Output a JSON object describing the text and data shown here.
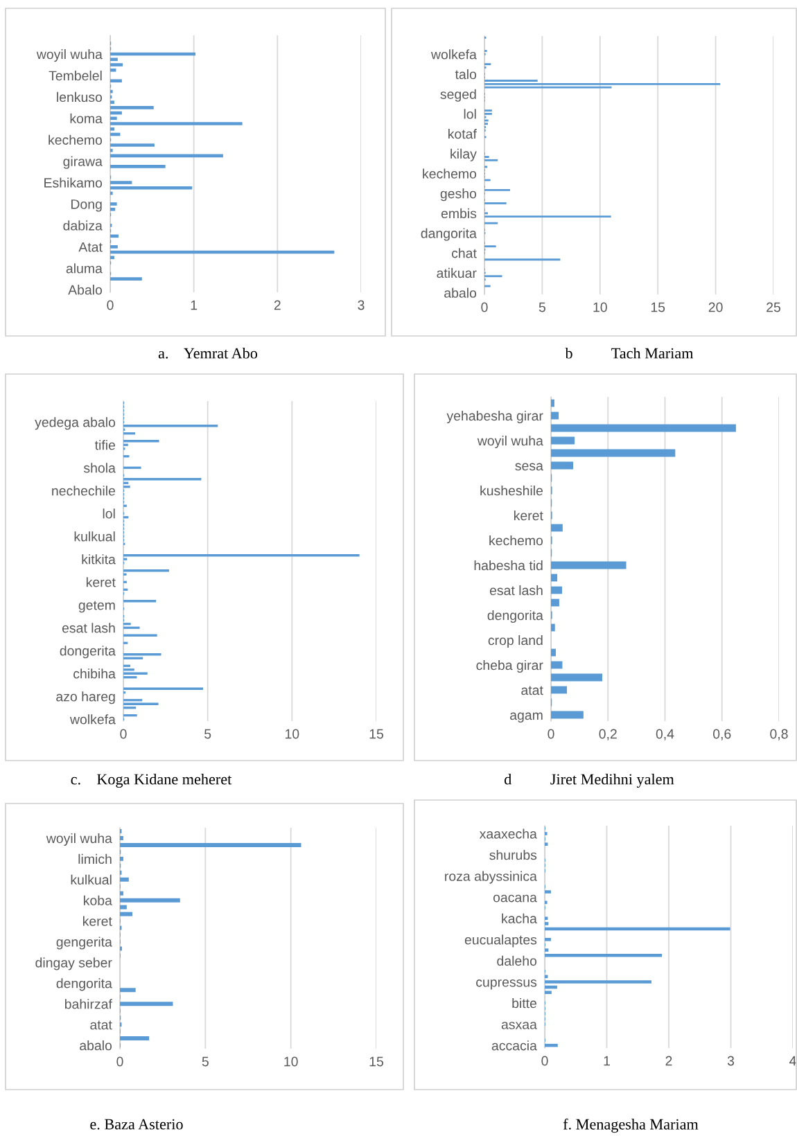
{
  "chart_data": [
    {
      "type": "bar",
      "orientation": "horizontal",
      "title": "a.    Yemrat Abo",
      "color": "#5b9bd5",
      "grid": "x",
      "xlim": [
        0,
        3
      ],
      "xticks": [
        0,
        1,
        2,
        3
      ],
      "categories": [
        null,
        null,
        null,
        "woyil wuha",
        null,
        null,
        null,
        "Tembelel",
        null,
        null,
        null,
        "lenkuso",
        null,
        null,
        null,
        "koma",
        null,
        null,
        null,
        "kechemo",
        null,
        null,
        null,
        "girawa",
        null,
        null,
        null,
        "Eshikamo",
        null,
        null,
        null,
        "Dong",
        null,
        null,
        null,
        "dabiza",
        null,
        null,
        null,
        "Atat",
        null,
        null,
        null,
        "aluma",
        null,
        null,
        null,
        "Abalo"
      ],
      "values": [
        0,
        0.01,
        0.01,
        1.02,
        0.09,
        0.15,
        0.07,
        0,
        0.14,
        0.01,
        0.03,
        0.02,
        0.05,
        0.52,
        0.14,
        0.08,
        1.58,
        0.05,
        0.12,
        0.01,
        0.53,
        0.03,
        1.35,
        0,
        0.66,
        0,
        0.01,
        0.26,
        0.98,
        0.03,
        0,
        0.08,
        0.06,
        0.01,
        0,
        0.02,
        0.01,
        0.1,
        0.01,
        0.09,
        2.68,
        0.05,
        0.01,
        0,
        0.01,
        0.38,
        0,
        0
      ]
    },
    {
      "type": "bar",
      "orientation": "horizontal",
      "title": "b          Tach Mariam",
      "color": "#5b9bd5",
      "grid": "x",
      "xlim": [
        0,
        25
      ],
      "xticks": [
        0,
        5,
        10,
        15,
        20,
        25
      ],
      "categories": [
        null,
        null,
        null,
        null,
        null,
        "wolkefa",
        null,
        null,
        null,
        null,
        null,
        "talo",
        null,
        null,
        null,
        null,
        null,
        "seged",
        null,
        null,
        null,
        null,
        null,
        "lol",
        null,
        null,
        null,
        null,
        null,
        "kotaf",
        null,
        null,
        null,
        null,
        null,
        "kilay",
        null,
        null,
        null,
        null,
        null,
        "kechemo",
        null,
        null,
        null,
        null,
        null,
        "gesho",
        null,
        null,
        null,
        null,
        null,
        "embis",
        null,
        null,
        null,
        null,
        null,
        "dangorita",
        null,
        null,
        null,
        null,
        null,
        "chat",
        null,
        null,
        null,
        null,
        null,
        "atikuar",
        null,
        null,
        null,
        null,
        null,
        "abalo"
      ],
      "values": [
        0.15,
        0,
        0,
        0,
        0.22,
        0.1,
        0,
        0,
        0.56,
        0.15,
        0,
        0.05,
        0.05,
        4.6,
        20.4,
        11,
        0,
        0.05,
        0.05,
        0.05,
        0,
        0,
        0.65,
        0.65,
        0.15,
        0.34,
        0.3,
        0.12,
        0.1,
        0,
        0.15,
        0,
        0,
        0,
        0,
        0.05,
        0.4,
        1.15,
        0,
        0.25,
        0.05,
        0.05,
        0.05,
        0.52,
        0,
        0.05,
        2.22,
        0.05,
        0,
        0.05,
        1.9,
        0,
        0.05,
        0.3,
        10.95,
        0,
        1.15,
        0,
        0.05,
        0.08,
        0,
        0,
        0.05,
        1,
        0.08,
        0.05,
        0,
        6.56,
        0,
        0,
        0.05,
        0.1,
        1.53,
        0.1,
        0,
        0.52,
        0,
        0
      ]
    },
    {
      "type": "bar",
      "orientation": "horizontal",
      "title": "c.    Koga Kidane meheret",
      "color": "#5b9bd5",
      "grid": "x",
      "xlim": [
        0,
        15
      ],
      "xticks": [
        0,
        5,
        10,
        15
      ],
      "categories": [
        null,
        null,
        null,
        null,
        null,
        "yedega abalo",
        null,
        null,
        null,
        null,
        null,
        "tifie",
        null,
        null,
        null,
        null,
        null,
        "shola",
        null,
        null,
        null,
        null,
        null,
        "nechechile",
        null,
        null,
        null,
        null,
        null,
        "lol",
        null,
        null,
        null,
        null,
        null,
        "kulkual",
        null,
        null,
        null,
        null,
        null,
        "kitkita",
        null,
        null,
        null,
        null,
        null,
        "keret",
        null,
        null,
        null,
        null,
        null,
        "getem",
        null,
        null,
        null,
        null,
        null,
        "esat lash",
        null,
        null,
        null,
        null,
        null,
        "dongerita",
        null,
        null,
        null,
        null,
        null,
        "chibiha",
        null,
        null,
        null,
        null,
        null,
        "azo hareg",
        null,
        null,
        null,
        null,
        null,
        "wolkefa"
      ],
      "values": [
        0.05,
        0.05,
        0.05,
        0.05,
        0.05,
        0.05,
        5.6,
        0.1,
        0.7,
        0,
        2.12,
        0.28,
        0.1,
        0,
        0.35,
        0,
        0,
        1.05,
        0,
        0.05,
        4.62,
        0.3,
        0.4,
        0.05,
        0.05,
        0.05,
        0.05,
        0.2,
        0,
        0.05,
        0.3,
        0.05,
        0.05,
        0.05,
        0.05,
        0.05,
        0.05,
        0.1,
        0,
        0,
        14,
        0.22,
        0.05,
        0,
        2.71,
        0.19,
        0,
        0.2,
        0,
        0.26,
        0.05,
        0,
        1.94,
        0,
        0.05,
        0,
        0.05,
        0.05,
        0.44,
        0.97,
        0,
        2,
        0,
        0.26,
        0,
        0,
        2.24,
        1.16,
        0,
        0.41,
        0.65,
        1.43,
        0.8,
        0,
        0,
        4.73,
        0.13,
        0,
        1.12,
        2.08,
        0.75,
        0,
        0.81,
        0.05
      ]
    },
    {
      "type": "bar",
      "orientation": "horizontal",
      "title": "d          Jiret Medihni yalem",
      "color": "#5b9bd5",
      "grid": "x",
      "xlim": [
        0,
        0.8
      ],
      "xticks": [
        {
          "value": 0,
          "label": "0"
        },
        {
          "value": 0.2,
          "label": "0,2"
        },
        {
          "value": 0.4,
          "label": "0,4"
        },
        {
          "value": 0.6,
          "label": "0,6"
        },
        {
          "value": 0.8,
          "label": "0,8"
        }
      ],
      "categories": [
        null,
        "yehabesha girar",
        null,
        "woyil wuha",
        null,
        "sesa",
        null,
        "kusheshile",
        null,
        "keret",
        null,
        "kechemo",
        null,
        "habesha tid",
        null,
        "esat lash",
        null,
        "dengorita",
        null,
        "crop land",
        null,
        "cheba girar",
        null,
        "atat",
        null,
        "agam"
      ],
      "values": [
        0.012,
        0.027,
        0.649,
        0.083,
        0.436,
        0.078,
        0.003,
        0.004,
        0.003,
        0.004,
        0.041,
        0.004,
        0.003,
        0.264,
        0.022,
        0.039,
        0.029,
        0.004,
        0.014,
        0,
        0.017,
        0.04,
        0.18,
        0.056,
        0.003,
        0.114
      ]
    },
    {
      "type": "bar",
      "orientation": "horizontal",
      "title": "e. Baza Asterio",
      "color": "#5b9bd5",
      "grid": "x",
      "xlim": [
        0,
        15
      ],
      "xticks": [
        0,
        5,
        10,
        15
      ],
      "categories": [
        null,
        "woyil wuha",
        null,
        null,
        "limich",
        null,
        null,
        "kulkual",
        null,
        null,
        "koba",
        null,
        null,
        "keret",
        null,
        null,
        "gengerita",
        null,
        null,
        "dingay seber",
        null,
        null,
        "dengorita",
        null,
        null,
        "bahirzaf",
        null,
        null,
        "atat",
        null,
        null,
        "abalo"
      ],
      "values": [
        0.1,
        0.2,
        10.6,
        0.05,
        0.2,
        0.05,
        0.1,
        0.52,
        0.03,
        0.2,
        3.52,
        0.4,
        0.73,
        0.03,
        0.1,
        0.03,
        0.03,
        0.12,
        0.03,
        null,
        null,
        null,
        0,
        0.92,
        0.03,
        3.1,
        0.03,
        0.05,
        0.1,
        0.03,
        1.71,
        0.03
      ]
    },
    {
      "type": "bar",
      "orientation": "horizontal",
      "title": "f. Menagesha Mariam",
      "color": "#5b9bd5",
      "grid": "x",
      "xlim": [
        0,
        4
      ],
      "xticks": [
        0,
        1,
        2,
        3,
        4
      ],
      "categories": [
        null,
        "xaaxecha",
        null,
        null,
        null,
        "shurubs",
        null,
        null,
        null,
        "roza abyssinica",
        null,
        null,
        null,
        "oacana",
        null,
        null,
        null,
        "kacha",
        null,
        null,
        null,
        "eucualaptes",
        null,
        null,
        null,
        "daleho",
        null,
        null,
        null,
        "cupressus",
        null,
        null,
        null,
        "bitte",
        null,
        null,
        null,
        "asxaa",
        null,
        null,
        null,
        "accacia"
      ],
      "values": [
        0.01,
        0.04,
        0.01,
        0.05,
        0,
        0,
        0.01,
        0.01,
        0.01,
        0,
        0,
        0.01,
        0.1,
        0,
        0.04,
        0.01,
        0,
        0.05,
        0.06,
        2.99,
        0,
        0.1,
        0.01,
        0.06,
        1.89,
        0,
        0,
        0.01,
        0.05,
        1.72,
        0.2,
        0.11,
        0,
        0.01,
        0.01,
        0.01,
        0.01,
        0.01,
        0,
        0,
        0.01,
        0.21
      ]
    }
  ]
}
